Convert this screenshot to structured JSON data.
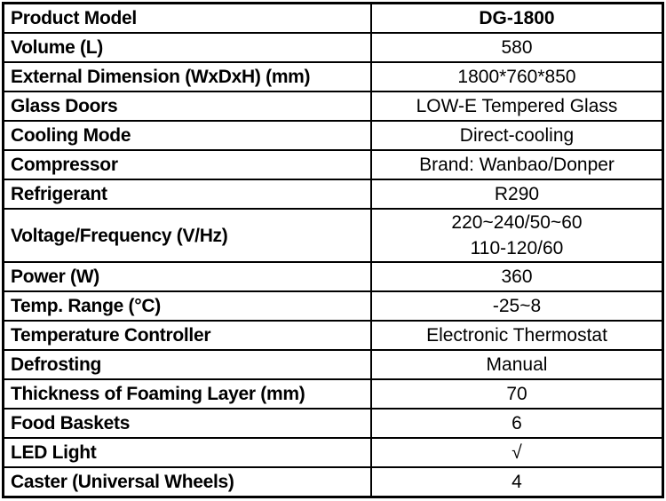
{
  "table": {
    "name": "product-specification-table",
    "columns": [
      "attribute",
      "value"
    ],
    "rows": [
      {
        "label": "Product Model",
        "value": "DG-1800",
        "value_bold": true
      },
      {
        "label": "Volume (L)",
        "value": "580",
        "value_bold": false
      },
      {
        "label": "External Dimension (WxDxH) (mm)",
        "value": "1800*760*850",
        "value_bold": false
      },
      {
        "label": "Glass Doors",
        "value": "LOW-E Tempered Glass",
        "value_bold": false
      },
      {
        "label": "Cooling Mode",
        "value": "Direct-cooling",
        "value_bold": false
      },
      {
        "label": "Compressor",
        "value": "Brand: Wanbao/Donper",
        "value_bold": false
      },
      {
        "label": "Refrigerant",
        "value": "R290",
        "value_bold": false
      },
      {
        "label": "Voltage/Frequency (V/Hz)",
        "value": "220~240/50~60\n110-120/60",
        "value_bold": false
      },
      {
        "label": "Power (W)",
        "value": "360",
        "value_bold": false
      },
      {
        "label": "Temp. Range (°C)",
        "value": "-25~8",
        "value_bold": false
      },
      {
        "label": "Temperature Controller",
        "value": "Electronic Thermostat",
        "value_bold": false
      },
      {
        "label": "Defrosting",
        "value": "Manual",
        "value_bold": false
      },
      {
        "label": "Thickness of Foaming Layer (mm)",
        "value": "70",
        "value_bold": false
      },
      {
        "label": "Food Baskets",
        "value": "6",
        "value_bold": false
      },
      {
        "label": "LED Light",
        "value": "√",
        "value_bold": false
      },
      {
        "label": "Caster (Universal Wheels)",
        "value": "4",
        "value_bold": false
      }
    ]
  }
}
